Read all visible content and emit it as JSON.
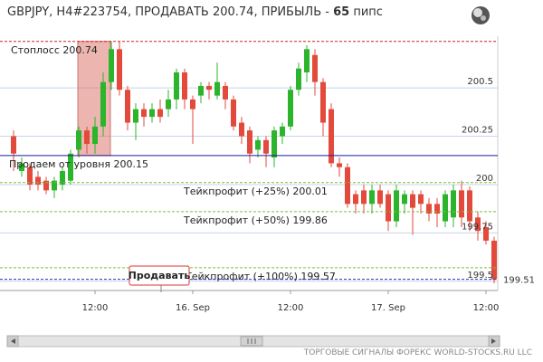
{
  "chart_data": {
    "type": "candlestick",
    "title_parts": [
      {
        "text": "GBPJPY, H4#223754, ПРОДАВАТЬ 200.74, ПРИБЫЛЬ - ",
        "bold": false
      },
      {
        "text": "65",
        "bold": true
      },
      {
        "text": " пипс",
        "bold": false
      }
    ],
    "up_color": "#2cb42c",
    "down_color": "#e34a3c",
    "open": [
      200.25,
      200.07,
      200.09,
      200.04,
      200.02,
      199.97,
      200.0,
      200.02,
      200.18,
      200.28,
      200.21,
      200.3,
      200.53,
      200.7,
      200.49,
      200.32,
      200.39,
      200.35,
      200.39,
      200.39,
      200.44,
      200.58,
      200.44,
      200.46,
      200.51,
      200.46,
      200.51,
      200.44,
      200.32,
      200.28,
      200.18,
      200.23,
      200.14,
      200.25,
      200.3,
      200.49,
      200.58,
      200.67,
      200.53,
      200.39,
      200.11,
      200.09,
      199.95,
      199.97,
      199.9,
      199.97,
      199.95,
      199.81,
      199.9,
      199.95,
      199.95,
      199.9,
      199.9,
      199.81,
      199.83,
      199.97,
      199.97,
      199.83,
      199.78,
      199.71
    ],
    "high": [
      200.28,
      200.14,
      200.11,
      200.07,
      200.04,
      200.04,
      200.09,
      200.18,
      200.3,
      200.3,
      200.35,
      200.58,
      200.74,
      200.74,
      200.51,
      200.42,
      200.42,
      200.42,
      200.44,
      200.49,
      200.6,
      200.6,
      200.46,
      200.53,
      200.53,
      200.63,
      200.53,
      200.46,
      200.35,
      200.3,
      200.25,
      200.25,
      200.3,
      200.32,
      200.51,
      200.63,
      200.72,
      200.7,
      200.55,
      200.42,
      200.14,
      200.11,
      199.97,
      200.0,
      200.0,
      200.0,
      199.97,
      200.0,
      199.97,
      199.97,
      199.97,
      199.93,
      199.93,
      199.97,
      200.0,
      200.02,
      199.99,
      199.86,
      199.81,
      199.73
    ],
    "low": [
      200.07,
      200.04,
      199.97,
      199.97,
      199.95,
      199.93,
      199.97,
      200.0,
      200.14,
      200.16,
      200.16,
      200.25,
      200.49,
      200.46,
      200.28,
      200.23,
      200.3,
      200.32,
      200.32,
      200.35,
      200.39,
      200.39,
      200.21,
      200.42,
      200.44,
      200.44,
      200.39,
      200.28,
      200.21,
      200.11,
      200.14,
      200.09,
      200.09,
      200.21,
      200.28,
      200.46,
      200.53,
      200.46,
      200.25,
      200.09,
      200.04,
      199.88,
      199.85,
      199.85,
      199.85,
      199.88,
      199.76,
      199.78,
      199.85,
      199.74,
      199.85,
      199.81,
      199.78,
      199.78,
      199.78,
      199.78,
      199.76,
      199.71,
      199.69,
      199.49
    ],
    "close": [
      200.16,
      200.11,
      200.0,
      200.0,
      199.97,
      200.02,
      200.07,
      200.16,
      200.28,
      200.21,
      200.3,
      200.53,
      200.7,
      200.49,
      200.32,
      200.39,
      200.35,
      200.39,
      200.35,
      200.44,
      200.58,
      200.44,
      200.39,
      200.51,
      200.49,
      200.53,
      200.44,
      200.3,
      200.25,
      200.16,
      200.23,
      200.16,
      200.28,
      200.3,
      200.49,
      200.6,
      200.7,
      200.53,
      200.32,
      200.11,
      200.09,
      199.9,
      199.9,
      199.9,
      199.97,
      199.9,
      199.81,
      199.97,
      199.95,
      199.88,
      199.9,
      199.85,
      199.85,
      199.95,
      199.97,
      199.83,
      199.81,
      199.76,
      199.71,
      199.51
    ],
    "xticks": [
      {
        "value": 10,
        "label": "12:00"
      },
      {
        "value": 22,
        "label": "16. Sep"
      },
      {
        "value": 34,
        "label": "12:00"
      },
      {
        "value": 46,
        "label": "17. Sep"
      },
      {
        "value": 58,
        "label": "12:00"
      }
    ],
    "ylim": [
      199.457,
      200.767
    ],
    "yticks": [
      199.5,
      199.75,
      200,
      200.25,
      200.5
    ],
    "grid": true,
    "levels": [
      {
        "label": "Стоплосс 200.74",
        "value": 200.74,
        "color": "#cc2222",
        "dashed": true
      },
      {
        "label": "Продаем от уровня 200.15",
        "value": 200.15,
        "color": "#1a1a9a",
        "dashed": false
      },
      {
        "label": "Тейкпрофит (+25%) 200.01",
        "value": 200.01,
        "color": "#7fbf3f",
        "dashed": true
      },
      {
        "label": "Тейкпрофит (+50%) 199.86",
        "value": 199.86,
        "color": "#7fbf3f",
        "dashed": true
      },
      {
        "label": "Тейкпрофит (+100%) 199.57",
        "value": 199.57,
        "color": "#7fbf3f",
        "dashed": true
      }
    ],
    "current_price": 199.51,
    "current_price_color": "#2233bb",
    "button": "Продавать",
    "footer": "ТОРГОВЫЕ СИГНАЛЫ ФОРЕКС WORLD-STOCKS.RU LLC"
  }
}
